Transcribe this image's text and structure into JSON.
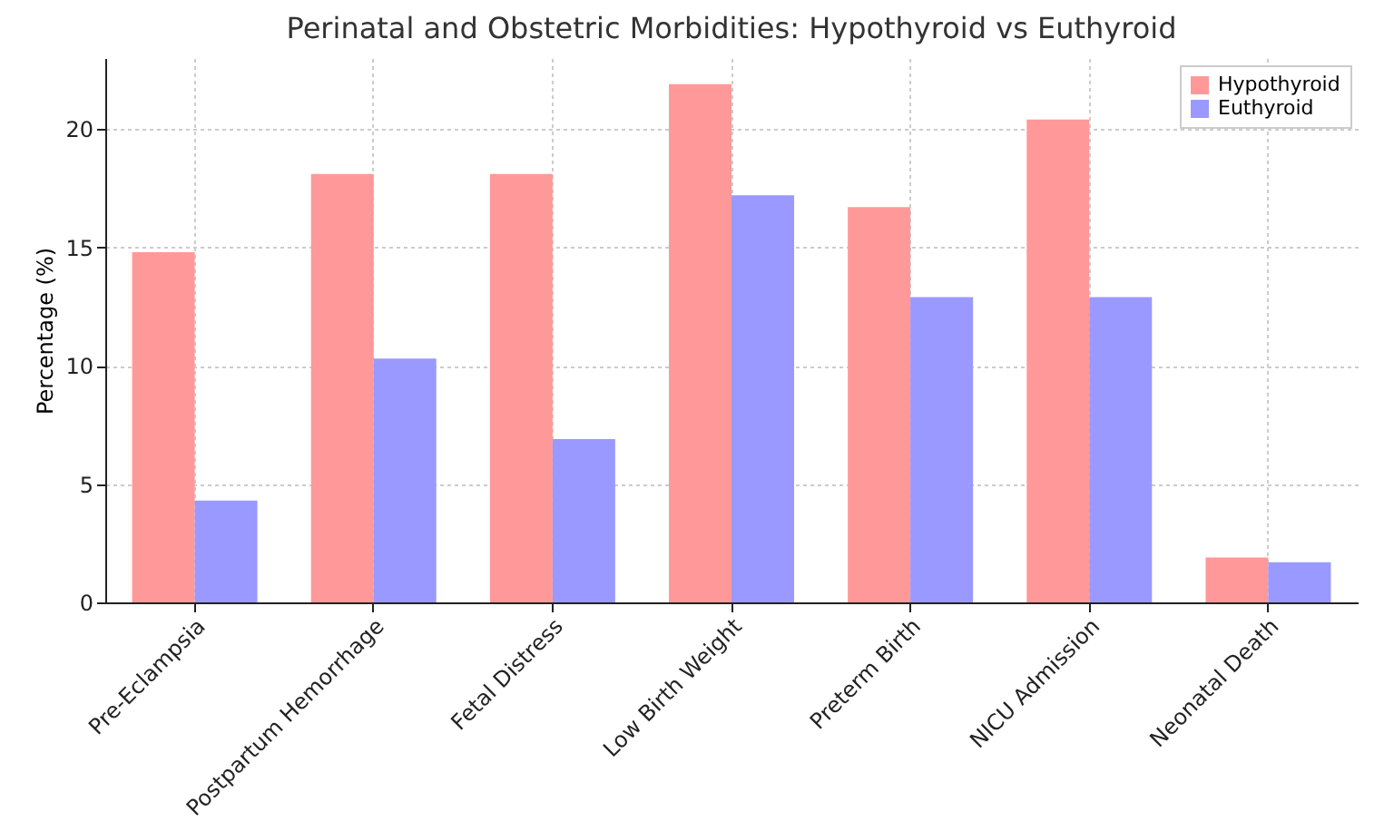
{
  "chart_data": {
    "type": "bar",
    "title": "Perinatal and Obstetric Morbidities: Hypothyroid vs Euthyroid",
    "ylabel": "Percentage (%)",
    "categories": [
      "Pre-Eclampsia",
      "Postpartum Hemorrhage",
      "Fetal Distress",
      "Low Birth Weight",
      "Preterm Birth",
      "NICU Admission",
      "Neonatal Death"
    ],
    "series": [
      {
        "name": "Hypothyroid",
        "color": "#ff9999",
        "values": [
          14.8,
          18.1,
          18.1,
          21.9,
          16.7,
          20.4,
          1.9
        ]
      },
      {
        "name": "Euthyroid",
        "color": "#9999ff",
        "values": [
          4.3,
          10.3,
          6.9,
          17.2,
          12.9,
          12.9,
          1.7
        ]
      }
    ],
    "ylim": [
      0,
      23
    ],
    "yticks": [
      0,
      5,
      10,
      15,
      20
    ],
    "grid": true,
    "legend": "top right"
  }
}
